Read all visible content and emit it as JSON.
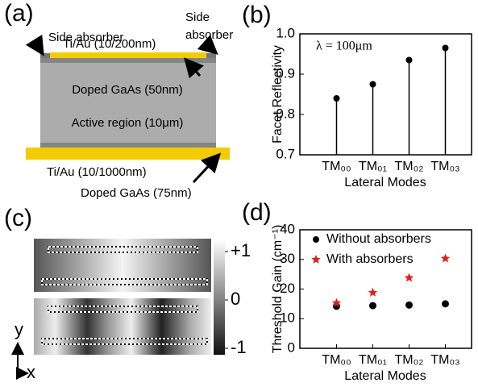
{
  "panel_a": {
    "label": "(a)",
    "side_absorber_left": "Side absorber",
    "side_absorber_right": [
      "Side",
      "absorber"
    ],
    "top_contact": "Ti/Au (10/200nm)",
    "upper_layer": "Doped GaAs (50nm)",
    "active": "Active region (10μm)",
    "bottom_contact": "Ti/Au (10/1000nm)",
    "lower_layer": "Doped GaAs (75nm)"
  },
  "panel_c": {
    "label": "(c)",
    "colorbar": {
      "lim": [
        -1,
        1
      ],
      "ticks": [
        {
          "value": 1,
          "label": "+1"
        },
        0,
        {
          "value": -1,
          "label": "-1"
        }
      ]
    },
    "y_axis": "y",
    "x_axis": "x"
  },
  "chart_data": [
    {
      "type": "lollipop",
      "panel": "(b)",
      "annotation": "λ = 100μm",
      "ylabel": "Facet Reflectivity",
      "xlabel": "Lateral Modes",
      "categories": [
        "TM₀₀",
        "TM₀₁",
        "TM₀₂",
        "TM₀₃"
      ],
      "values": [
        0.84,
        0.875,
        0.935,
        0.965
      ],
      "color": "#000000",
      "ylim": [
        0.7,
        1.0
      ],
      "yticks": [
        0.7,
        0.8,
        0.9,
        {
          "value": 1.0,
          "label": "1.0"
        }
      ]
    },
    {
      "type": "scatter",
      "panel": "(d)",
      "ylabel": "Threshold Gain (cm⁻¹)",
      "xlabel": "Lateral Modes",
      "categories": [
        "TM₀₀",
        "TM₀₁",
        "TM₀₂",
        "TM₀₃"
      ],
      "series": [
        {
          "name": "Without absorbers",
          "color": "#000000",
          "marker": "circle",
          "values": [
            14.2,
            14.4,
            14.6,
            15.0
          ]
        },
        {
          "name": "With absorbers",
          "color": "#e02020",
          "marker": "star",
          "values": [
            15.3,
            18.8,
            23.8,
            30.3
          ]
        }
      ],
      "ylim": [
        0,
        40
      ],
      "yticks": [
        0,
        10,
        20,
        30,
        40
      ],
      "legend": "upper left"
    }
  ]
}
